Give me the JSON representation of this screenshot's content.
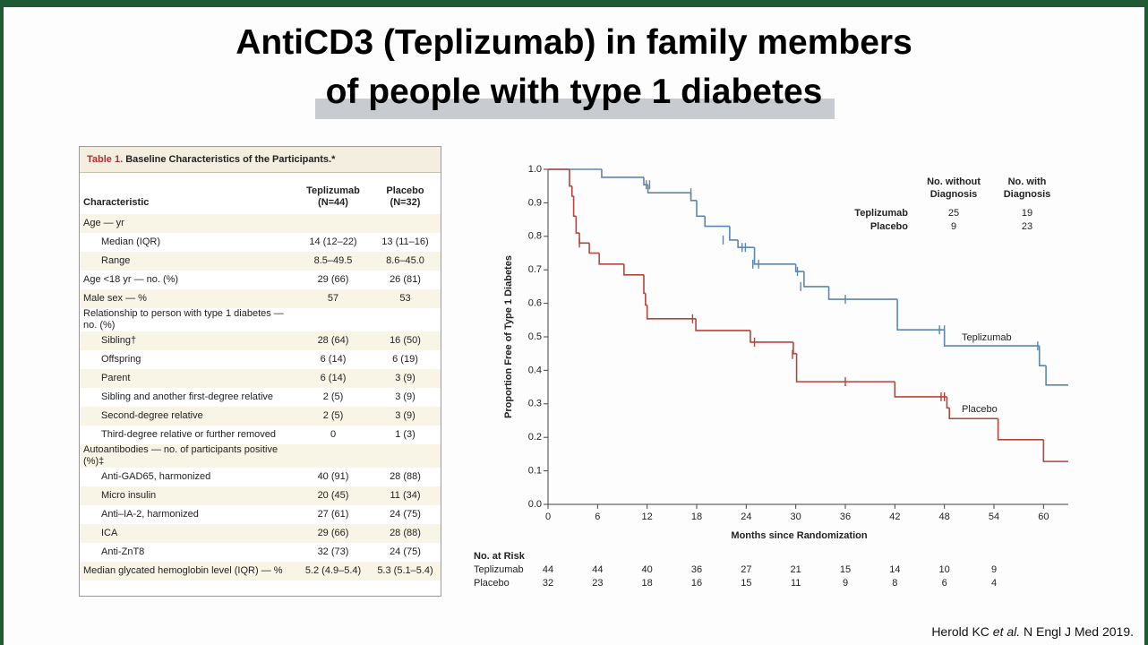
{
  "header": {
    "title_lines": [
      "AntiCD3 (Teplizumab) in family members",
      "of people with type 1 diabetes"
    ]
  },
  "table": {
    "title_prefix": "Table 1.",
    "title": "Baseline Characteristics of the Participants.*",
    "columns": [
      "Characteristic",
      "Teplizumab (N=44)",
      "Placebo (N=32)"
    ],
    "rows": [
      {
        "label": "Age — yr",
        "subrows": [
          {
            "label": "Median (IQR)",
            "teplizumab": "14 (12–22)",
            "placebo": "13 (11–16)"
          },
          {
            "label": "Range",
            "teplizumab": "8.5–49.5",
            "placebo": "8.6–45.0"
          }
        ]
      },
      {
        "label": "Age <18 yr — no. (%)",
        "teplizumab": "29 (66)",
        "placebo": "26 (81)"
      },
      {
        "label": "Male sex — %",
        "teplizumab": "57",
        "placebo": "53"
      },
      {
        "label": "Relationship to person with type 1 diabetes — no. (%)",
        "subrows": [
          {
            "label": "Sibling†",
            "teplizumab": "28 (64)",
            "placebo": "16 (50)"
          },
          {
            "label": "Offspring",
            "teplizumab": "6 (14)",
            "placebo": "6 (19)"
          },
          {
            "label": "Parent",
            "teplizumab": "6 (14)",
            "placebo": "3 (9)"
          },
          {
            "label": "Sibling and another first-degree relative",
            "teplizumab": "2 (5)",
            "placebo": "3 (9)"
          },
          {
            "label": "Second-degree relative",
            "teplizumab": "2 (5)",
            "placebo": "3 (9)"
          },
          {
            "label": "Third-degree relative or further removed",
            "teplizumab": "0",
            "placebo": "1 (3)"
          }
        ]
      },
      {
        "label": "Autoantibodies — no. of participants positive (%)‡",
        "subrows": [
          {
            "label": "Anti-GAD65, harmonized",
            "teplizumab": "40 (91)",
            "placebo": "28 (88)"
          },
          {
            "label": "Micro insulin",
            "teplizumab": "20 (45)",
            "placebo": "11 (34)"
          },
          {
            "label": "Anti–IA-2, harmonized",
            "teplizumab": "27 (61)",
            "placebo": "24 (75)"
          },
          {
            "label": "ICA",
            "teplizumab": "29 (66)",
            "placebo": "28 (88)"
          },
          {
            "label": "Anti-ZnT8",
            "teplizumab": "32 (73)",
            "placebo": "24 (75)"
          }
        ]
      },
      {
        "label": "Median glycated hemoglobin level (IQR) — %",
        "teplizumab": "5.2 (4.9–5.4)",
        "placebo": "5.3 (5.1–5.4)"
      }
    ]
  },
  "chart_data": {
    "type": "step",
    "x_label": "Months since Randomization",
    "y_label": "Proportion Free of Type 1 Diabetes",
    "xlim": [
      0,
      63
    ],
    "ylim": [
      0,
      1
    ],
    "xticks": [
      0,
      6,
      12,
      18,
      24,
      30,
      36,
      42,
      48,
      54,
      60
    ],
    "yticks": [
      {
        "value": 0,
        "label": "0.0"
      },
      0.1,
      0.2,
      0.3,
      0.4,
      0.5,
      0.6,
      0.7,
      0.8,
      0.9,
      {
        "value": 1,
        "label": "1.0"
      }
    ],
    "series": [
      {
        "name": "Teplizumab",
        "color": "#5b86b0",
        "x": [
          0,
          6.5,
          11.6,
          12.1,
          17.3,
          18,
          19,
          22,
          23,
          25,
          30,
          31,
          34,
          42.3,
          48,
          59.5,
          60.3,
          63
        ],
        "values": [
          1,
          0.976,
          0.954,
          0.93,
          0.907,
          0.86,
          0.83,
          0.789,
          0.767,
          0.717,
          0.695,
          0.65,
          0.612,
          0.521,
          0.473,
          0.414,
          0.356,
          0.356
        ],
        "censor_x": [
          11.9,
          12.3,
          17.3,
          21.2,
          23.5,
          23.9,
          24.8,
          25.5,
          30.2,
          30.6,
          36,
          47.4,
          48,
          59.3
        ],
        "censor_values": [
          0.954,
          0.954,
          0.93,
          0.789,
          0.767,
          0.767,
          0.717,
          0.717,
          0.695,
          0.65,
          0.612,
          0.521,
          0.521,
          0.473
        ]
      },
      {
        "name": "Placebo",
        "color": "#b5443a",
        "x": [
          0,
          2.6,
          2.9,
          3.1,
          3.4,
          3.8,
          5,
          6.2,
          9.2,
          11.6,
          11.8,
          12,
          17.9,
          24.5,
          29.7,
          30.1,
          42,
          48.3,
          48.6,
          54.5,
          60,
          63
        ],
        "values": [
          1,
          0.95,
          0.92,
          0.86,
          0.81,
          0.78,
          0.75,
          0.717,
          0.685,
          0.63,
          0.595,
          0.554,
          0.519,
          0.484,
          0.45,
          0.366,
          0.321,
          0.288,
          0.256,
          0.193,
          0.128,
          0.128
        ],
        "censor_x": [
          3.8,
          17.5,
          25,
          29.6,
          36,
          47.6,
          48
        ],
        "censor_values": [
          0.78,
          0.554,
          0.484,
          0.447,
          0.366,
          0.321,
          0.321
        ]
      }
    ],
    "summary": {
      "columns": [
        "No. without Diagnosis",
        "No. with Diagnosis"
      ],
      "rows": [
        [
          "25",
          "19"
        ],
        [
          "9",
          "23"
        ]
      ]
    },
    "at_risk": {
      "title": "No. at Risk",
      "rows": [
        [
          44,
          44,
          40,
          36,
          27,
          21,
          15,
          14,
          10,
          9
        ],
        [
          32,
          23,
          18,
          16,
          15,
          11,
          9,
          8,
          6,
          4
        ]
      ]
    }
  },
  "citation": {
    "before": "Herold KC ",
    "italic": "et al.",
    "after": " N Engl J Med 2019."
  }
}
